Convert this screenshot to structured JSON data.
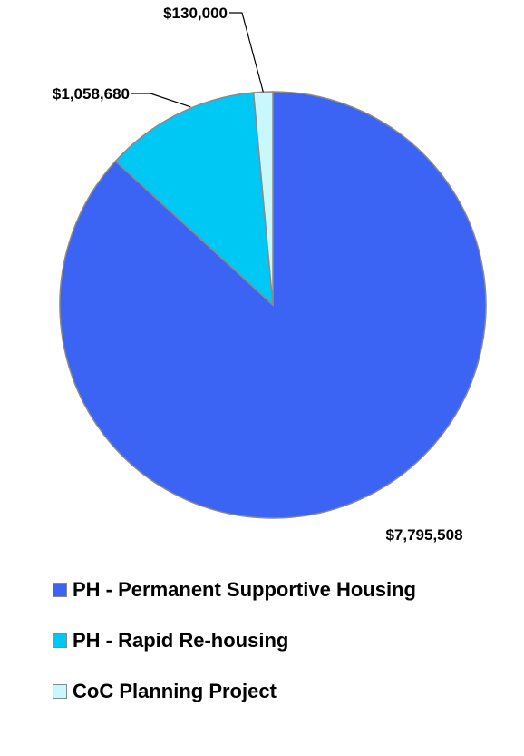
{
  "chart_data": {
    "type": "pie",
    "start_angle_deg": 0,
    "direction": "clockwise",
    "series": [
      {
        "name": "PH - Permanent Supportive Housing",
        "value": 7795508,
        "label": "$7,795,508",
        "color": "#3c64f4",
        "label_placement": "outside-bottom-right"
      },
      {
        "name": "PH - Rapid Re-housing",
        "value": 1058680,
        "label": "$1,058,680",
        "color": "#00c8f4",
        "label_placement": "outside-with-leader"
      },
      {
        "name": "CoC Planning Project",
        "value": 130000,
        "label": "$130,000",
        "color": "#c8f8fc",
        "label_placement": "outside-with-leader"
      }
    ],
    "legend_position": "bottom",
    "slice_border_color": "#8a8a8a"
  }
}
